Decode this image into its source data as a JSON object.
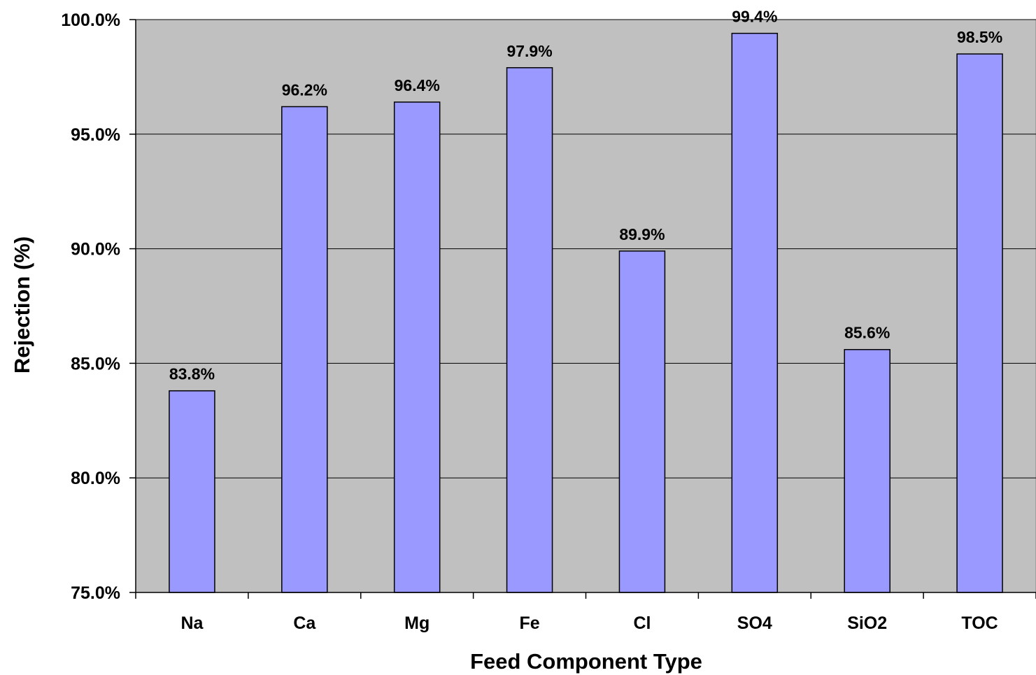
{
  "chart_data": {
    "type": "bar",
    "title": "",
    "xlabel": "Feed Component Type",
    "ylabel": "Rejection (%)",
    "categories": [
      "Na",
      "Ca",
      "Mg",
      "Fe",
      "Cl",
      "SO4",
      "SiO2",
      "TOC"
    ],
    "values": [
      83.8,
      96.2,
      96.4,
      97.9,
      89.9,
      99.4,
      85.6,
      98.5
    ],
    "data_labels": [
      "83.8%",
      "96.2%",
      "96.4%",
      "97.9%",
      "89.9%",
      "99.4%",
      "85.6%",
      "98.5%"
    ],
    "ylim": [
      75,
      100
    ],
    "yticks": [
      75,
      80,
      85,
      90,
      95,
      100
    ],
    "ytick_labels": [
      "75.0%",
      "80.0%",
      "85.0%",
      "90.0%",
      "95.0%",
      "100.0%"
    ],
    "grid": true,
    "legend": "none",
    "colors": {
      "plot_background": "#c0c0c0",
      "bar_fill": "#9999ff",
      "bar_stroke": "#000000",
      "gridline": "#000000"
    }
  }
}
